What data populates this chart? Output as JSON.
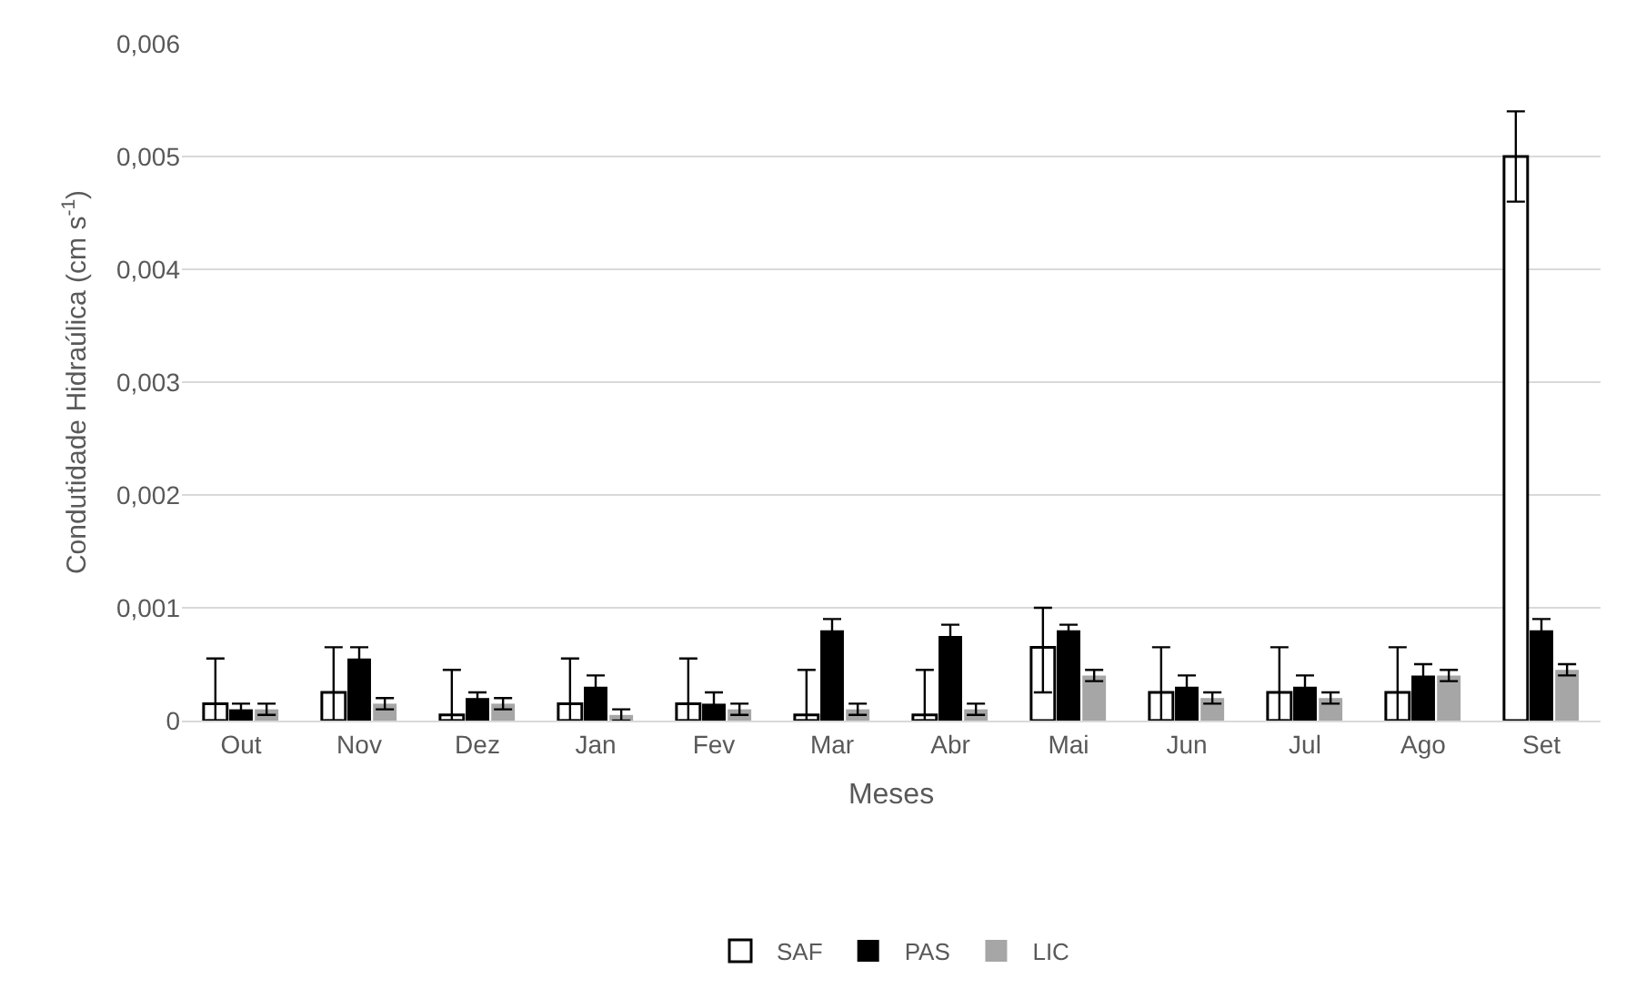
{
  "chart_data": {
    "type": "bar",
    "xlabel": "Meses",
    "ylabel": "Condutidade Hidraúlica (cm s$^{-1}$)",
    "categories": [
      "Out",
      "Nov",
      "Dez",
      "Jan",
      "Fev",
      "Mar",
      "Abr",
      "Mai",
      "Jun",
      "Jul",
      "Ago",
      "Set"
    ],
    "series": [
      {
        "name": "SAF",
        "color": "#ffffff",
        "values": [
          0.00015,
          0.00025,
          5e-05,
          0.00015,
          0.00015,
          5e-05,
          5e-05,
          0.00065,
          0.00025,
          0.00025,
          0.00025,
          0.005
        ],
        "errors": [
          [
            0,
            0.00055
          ],
          [
            0,
            0.00065
          ],
          [
            0,
            0.00045
          ],
          [
            0,
            0.00055
          ],
          [
            0,
            0.00055
          ],
          [
            0,
            0.00045
          ],
          [
            0,
            0.00045
          ],
          [
            0.00025,
            0.001
          ],
          [
            0,
            0.00065
          ],
          [
            0,
            0.00065
          ],
          [
            0,
            0.00065
          ],
          [
            0.0046,
            0.0054
          ]
        ]
      },
      {
        "name": "PAS",
        "color": "#000000",
        "values": [
          0.0001,
          0.00055,
          0.0002,
          0.0003,
          0.00015,
          0.0008,
          0.00075,
          0.0008,
          0.0003,
          0.0003,
          0.0004,
          0.0008
        ],
        "errors": [
          5e-05,
          0.0001,
          5e-05,
          0.0001,
          0.0001,
          0.0001,
          0.0001,
          5e-05,
          0.0001,
          0.0001,
          0.0001,
          0.0001
        ]
      },
      {
        "name": "LIC",
        "color": "#a6a6a6",
        "values": [
          0.0001,
          0.00015,
          0.00015,
          5e-05,
          0.0001,
          0.0001,
          0.0001,
          0.0004,
          0.0002,
          0.0002,
          0.0004,
          0.00045
        ],
        "errors": [
          5e-05,
          5e-05,
          5e-05,
          5e-05,
          5e-05,
          5e-05,
          5e-05,
          5e-05,
          5e-05,
          5e-05,
          5e-05,
          5e-05
        ]
      }
    ],
    "ylim": [
      0,
      0.006
    ],
    "yticks": [
      0,
      {
        "value": 0.001,
        "label": "0,001"
      },
      {
        "value": 0.002,
        "label": "0,002"
      },
      {
        "value": 0.003,
        "label": "0,003"
      },
      {
        "value": 0.004,
        "label": "0,004"
      },
      {
        "value": 0.005,
        "label": "0,005"
      },
      {
        "value": 0.006,
        "label": "0,006"
      }
    ],
    "grid": "y",
    "legend": "bottom"
  }
}
